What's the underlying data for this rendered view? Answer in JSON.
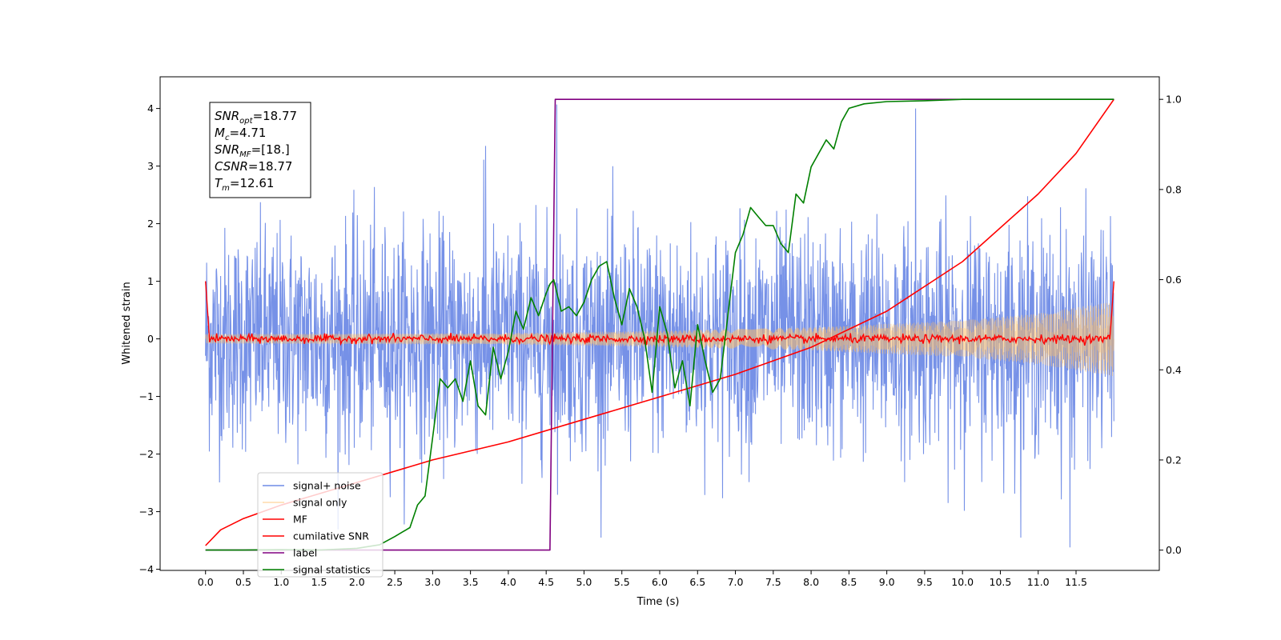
{
  "chart_data": {
    "type": "line",
    "xlabel": "Time (s)",
    "ylabel": "Whitened strain",
    "xlim": [
      -0.6,
      12.6
    ],
    "ylim": [
      -4.02,
      4.55
    ],
    "y2lim": [
      -0.045,
      1.05
    ],
    "x_ticks": [
      0.0,
      0.5,
      1.0,
      1.5,
      2.0,
      2.5,
      3.0,
      3.5,
      4.0,
      4.5,
      5.0,
      5.5,
      6.0,
      6.5,
      7.0,
      7.5,
      8.0,
      8.5,
      9.0,
      9.5,
      10.0,
      10.5,
      11.0,
      11.5
    ],
    "x_tick_labels": [
      "0.0",
      "0.5",
      "1.0",
      "1.5",
      "2.0",
      "2.5",
      "3.0",
      "3.5",
      "4.0",
      "4.5",
      "5.0",
      "5.5",
      "6.0",
      "6.5",
      "7.0",
      "7.5",
      "8.0",
      "8.5",
      "9.0",
      "9.5",
      "10.0",
      "10.5",
      "11.0",
      "11.5"
    ],
    "y_ticks": [
      -4,
      -3,
      -2,
      -1,
      0,
      1,
      2,
      3,
      4
    ],
    "y_tick_labels": [
      "−4",
      "−3",
      "−2",
      "−1",
      "0",
      "1",
      "2",
      "3",
      "4"
    ],
    "y2_ticks": [
      0.0,
      0.2,
      0.4,
      0.6,
      0.8,
      1.0
    ],
    "y2_tick_labels": [
      "0.0",
      "0.2",
      "0.4",
      "0.6",
      "0.8",
      "1.0"
    ],
    "grid": false,
    "legend_position": "lower-left",
    "series": [
      {
        "name": "signal+ noise",
        "axis": "left",
        "color": "#6f8be6",
        "style": "dense noisy trace, roughly ±1.5 around 0 with spikes to about ±3.5, t = 0 to 12",
        "x_range": [
          0,
          12
        ],
        "amplitude_typical": 1.5,
        "peaks": [
          4.07,
          -3.62
        ]
      },
      {
        "name": "signal only",
        "axis": "left",
        "color": "#ffbf66",
        "style": "chirp whose amplitude grows from about 0.08 at t=0 to about 0.65 at t=12",
        "envelope": [
          [
            0,
            0.08
          ],
          [
            4,
            0.1
          ],
          [
            6,
            0.14
          ],
          [
            8,
            0.2
          ],
          [
            10,
            0.32
          ],
          [
            11,
            0.44
          ],
          [
            12,
            0.65
          ]
        ]
      },
      {
        "name": "MF",
        "axis": "left",
        "color": "#ff0000",
        "style": "near-zero noisy trace with value 1.0 at both ends",
        "endpoints": [
          [
            0,
            1.0
          ],
          [
            12,
            1.0
          ]
        ],
        "amplitude_typical": 0.07
      },
      {
        "name": "cumilative SNR",
        "axis": "right",
        "color": "#ff0000",
        "points": [
          [
            0.0,
            0.01
          ],
          [
            0.2,
            0.045
          ],
          [
            0.5,
            0.07
          ],
          [
            1.0,
            0.1
          ],
          [
            2.0,
            0.15
          ],
          [
            3.0,
            0.2
          ],
          [
            4.0,
            0.24
          ],
          [
            5.0,
            0.29
          ],
          [
            6.0,
            0.34
          ],
          [
            7.0,
            0.39
          ],
          [
            8.0,
            0.45
          ],
          [
            9.0,
            0.53
          ],
          [
            10.0,
            0.64
          ],
          [
            11.0,
            0.79
          ],
          [
            11.5,
            0.88
          ],
          [
            12.0,
            1.0
          ]
        ]
      },
      {
        "name": "label",
        "axis": "right",
        "color": "#800080",
        "points": [
          [
            0.0,
            0.0
          ],
          [
            4.55,
            0.0
          ],
          [
            4.62,
            1.0
          ],
          [
            12.0,
            1.0
          ]
        ]
      },
      {
        "name": "signal statistics",
        "axis": "right",
        "color": "#008000",
        "points": [
          [
            0.0,
            0.0
          ],
          [
            0.5,
            0.0
          ],
          [
            1.0,
            0.001
          ],
          [
            1.5,
            0.0
          ],
          [
            2.0,
            0.004
          ],
          [
            2.3,
            0.012
          ],
          [
            2.5,
            0.03
          ],
          [
            2.6,
            0.04
          ],
          [
            2.7,
            0.05
          ],
          [
            2.8,
            0.1
          ],
          [
            2.9,
            0.12
          ],
          [
            3.0,
            0.25
          ],
          [
            3.1,
            0.38
          ],
          [
            3.2,
            0.36
          ],
          [
            3.3,
            0.38
          ],
          [
            3.4,
            0.33
          ],
          [
            3.5,
            0.42
          ],
          [
            3.6,
            0.32
          ],
          [
            3.7,
            0.3
          ],
          [
            3.8,
            0.45
          ],
          [
            3.9,
            0.38
          ],
          [
            4.0,
            0.44
          ],
          [
            4.1,
            0.53
          ],
          [
            4.2,
            0.49
          ],
          [
            4.3,
            0.56
          ],
          [
            4.4,
            0.52
          ],
          [
            4.5,
            0.57
          ],
          [
            4.55,
            0.59
          ],
          [
            4.6,
            0.6
          ],
          [
            4.7,
            0.53
          ],
          [
            4.8,
            0.54
          ],
          [
            4.9,
            0.52
          ],
          [
            5.0,
            0.55
          ],
          [
            5.1,
            0.6
          ],
          [
            5.2,
            0.63
          ],
          [
            5.3,
            0.64
          ],
          [
            5.4,
            0.56
          ],
          [
            5.5,
            0.5
          ],
          [
            5.6,
            0.58
          ],
          [
            5.7,
            0.54
          ],
          [
            5.8,
            0.47
          ],
          [
            5.9,
            0.35
          ],
          [
            6.0,
            0.54
          ],
          [
            6.1,
            0.48
          ],
          [
            6.2,
            0.36
          ],
          [
            6.3,
            0.42
          ],
          [
            6.4,
            0.32
          ],
          [
            6.5,
            0.5
          ],
          [
            6.6,
            0.42
          ],
          [
            6.7,
            0.35
          ],
          [
            6.8,
            0.38
          ],
          [
            6.9,
            0.52
          ],
          [
            7.0,
            0.66
          ],
          [
            7.1,
            0.7
          ],
          [
            7.2,
            0.76
          ],
          [
            7.3,
            0.74
          ],
          [
            7.4,
            0.72
          ],
          [
            7.5,
            0.72
          ],
          [
            7.6,
            0.68
          ],
          [
            7.7,
            0.66
          ],
          [
            7.8,
            0.79
          ],
          [
            7.9,
            0.77
          ],
          [
            8.0,
            0.85
          ],
          [
            8.1,
            0.88
          ],
          [
            8.2,
            0.91
          ],
          [
            8.3,
            0.89
          ],
          [
            8.4,
            0.95
          ],
          [
            8.5,
            0.98
          ],
          [
            8.7,
            0.99
          ],
          [
            9.0,
            0.995
          ],
          [
            9.5,
            0.997
          ],
          [
            10.0,
            1.0
          ],
          [
            11.0,
            1.0
          ],
          [
            12.0,
            1.0
          ]
        ]
      }
    ]
  },
  "annotation": {
    "lines": [
      {
        "sym": "SNR",
        "sub": "opt",
        "val": "=18.77"
      },
      {
        "sym": "M",
        "sub": "c",
        "val": "=4.71"
      },
      {
        "sym": "SNR",
        "sub": "MF",
        "val": "=[18.]"
      },
      {
        "sym": "CSNR",
        "sub": "",
        "val": "=18.77"
      },
      {
        "sym": "T",
        "sub": "m",
        "val": "=12.61"
      }
    ]
  }
}
